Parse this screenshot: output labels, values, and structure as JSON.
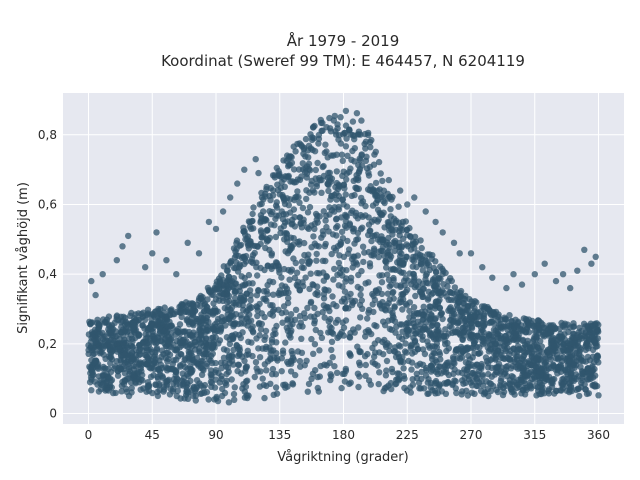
{
  "chart_data": {
    "type": "scatter",
    "title_lines": [
      "År 1979 - 2019",
      "Koordinat (Sweref 99 TM): E 464457, N 6204119"
    ],
    "xlabel": "Vågriktning (grader)",
    "ylabel": "Signifikant våghöjd (m)",
    "xlim": [
      -18,
      378
    ],
    "ylim": [
      -0.03,
      0.92
    ],
    "xticks": [
      0,
      45,
      90,
      135,
      180,
      225,
      270,
      315,
      360
    ],
    "yticks": [
      0,
      0.2,
      0.4,
      0.6,
      0.8
    ],
    "ytick_labels": [
      "0",
      "0,2",
      "0,4",
      "0,6",
      "0,8"
    ],
    "grid": true,
    "colors": {
      "marker": "#30566e",
      "plot_bg": "#e6e8f0",
      "grid": "#ffffff"
    },
    "envelope": {
      "x": [
        0,
        15,
        30,
        45,
        60,
        75,
        90,
        105,
        120,
        135,
        150,
        165,
        180,
        190,
        200,
        210,
        225,
        240,
        255,
        270,
        285,
        300,
        315,
        330,
        345,
        360
      ],
      "upper": [
        0.27,
        0.28,
        0.29,
        0.3,
        0.31,
        0.33,
        0.38,
        0.5,
        0.62,
        0.72,
        0.8,
        0.85,
        0.87,
        0.87,
        0.79,
        0.66,
        0.55,
        0.47,
        0.39,
        0.33,
        0.3,
        0.28,
        0.27,
        0.26,
        0.26,
        0.26
      ],
      "lower": [
        0.06,
        0.05,
        0.05,
        0.04,
        0.04,
        0.03,
        0.03,
        0.03,
        0.04,
        0.05,
        0.06,
        0.06,
        0.07,
        0.07,
        0.07,
        0.06,
        0.06,
        0.05,
        0.05,
        0.05,
        0.05,
        0.05,
        0.05,
        0.05,
        0.05,
        0.05
      ]
    },
    "outer_points": [
      {
        "x": 2,
        "y": 0.38
      },
      {
        "x": 5,
        "y": 0.34
      },
      {
        "x": 10,
        "y": 0.4
      },
      {
        "x": 20,
        "y": 0.44
      },
      {
        "x": 24,
        "y": 0.48
      },
      {
        "x": 28,
        "y": 0.51
      },
      {
        "x": 40,
        "y": 0.42
      },
      {
        "x": 45,
        "y": 0.46
      },
      {
        "x": 48,
        "y": 0.52
      },
      {
        "x": 55,
        "y": 0.44
      },
      {
        "x": 62,
        "y": 0.4
      },
      {
        "x": 70,
        "y": 0.49
      },
      {
        "x": 78,
        "y": 0.46
      },
      {
        "x": 85,
        "y": 0.55
      },
      {
        "x": 90,
        "y": 0.53
      },
      {
        "x": 95,
        "y": 0.58
      },
      {
        "x": 100,
        "y": 0.62
      },
      {
        "x": 105,
        "y": 0.66
      },
      {
        "x": 110,
        "y": 0.7
      },
      {
        "x": 118,
        "y": 0.73
      },
      {
        "x": 120,
        "y": 0.69
      },
      {
        "x": 212,
        "y": 0.67
      },
      {
        "x": 220,
        "y": 0.64
      },
      {
        "x": 225,
        "y": 0.6
      },
      {
        "x": 230,
        "y": 0.62
      },
      {
        "x": 238,
        "y": 0.58
      },
      {
        "x": 245,
        "y": 0.55
      },
      {
        "x": 250,
        "y": 0.52
      },
      {
        "x": 258,
        "y": 0.49
      },
      {
        "x": 262,
        "y": 0.46
      },
      {
        "x": 270,
        "y": 0.46
      },
      {
        "x": 278,
        "y": 0.42
      },
      {
        "x": 285,
        "y": 0.39
      },
      {
        "x": 295,
        "y": 0.36
      },
      {
        "x": 300,
        "y": 0.4
      },
      {
        "x": 306,
        "y": 0.37
      },
      {
        "x": 315,
        "y": 0.4
      },
      {
        "x": 322,
        "y": 0.43
      },
      {
        "x": 330,
        "y": 0.38
      },
      {
        "x": 335,
        "y": 0.4
      },
      {
        "x": 340,
        "y": 0.36
      },
      {
        "x": 345,
        "y": 0.41
      },
      {
        "x": 350,
        "y": 0.47
      },
      {
        "x": 355,
        "y": 0.43
      },
      {
        "x": 358,
        "y": 0.45
      }
    ]
  }
}
